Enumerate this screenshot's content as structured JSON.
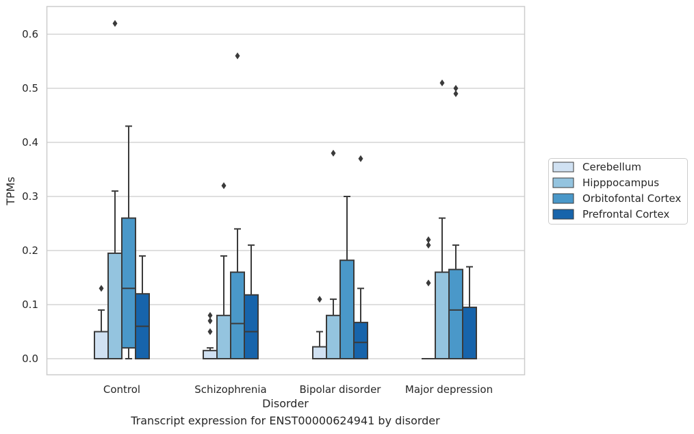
{
  "caption": "Transcript expression for ENST00000624941 by disorder",
  "chart_data": {
    "type": "box",
    "xlabel": "Disorder",
    "ylabel": "TPMs",
    "ylim": [
      -0.03,
      0.65
    ],
    "yticks": [
      "0.0",
      "0.1",
      "0.2",
      "0.3",
      "0.4",
      "0.5",
      "0.6"
    ],
    "grid": "horizontal",
    "legend_position": "right",
    "categories": [
      "Control",
      "Schizophrenia",
      "Bipolar disorder",
      "Major depression"
    ],
    "series": [
      {
        "name": "Cerebellum",
        "color": "#d0e1f2",
        "boxes": [
          {
            "lower_whisker": 0,
            "q1": 0,
            "median": 0,
            "q3": 0.05,
            "upper_whisker": 0.09,
            "outliers": [
              0.13
            ]
          },
          {
            "lower_whisker": 0,
            "q1": 0,
            "median": 0,
            "q3": 0.015,
            "upper_whisker": 0.02,
            "outliers": [
              0.05,
              0.07,
              0.08
            ]
          },
          {
            "lower_whisker": 0,
            "q1": 0,
            "median": 0,
            "q3": 0.022,
            "upper_whisker": 0.05,
            "outliers": [
              0.11
            ]
          },
          {
            "lower_whisker": 0,
            "q1": 0,
            "median": 0,
            "q3": 0,
            "upper_whisker": 0,
            "outliers": [
              0.14,
              0.21,
              0.22
            ]
          }
        ]
      },
      {
        "name": "Hipppocampus",
        "color": "#94c4df",
        "boxes": [
          {
            "lower_whisker": 0,
            "q1": 0,
            "median": 0,
            "q3": 0.195,
            "upper_whisker": 0.31,
            "outliers": [
              0.62
            ]
          },
          {
            "lower_whisker": 0,
            "q1": 0,
            "median": 0,
            "q3": 0.08,
            "upper_whisker": 0.19,
            "outliers": [
              0.32
            ]
          },
          {
            "lower_whisker": 0,
            "q1": 0,
            "median": 0,
            "q3": 0.08,
            "upper_whisker": 0.11,
            "outliers": [
              0.38
            ]
          },
          {
            "lower_whisker": 0,
            "q1": 0,
            "median": 0,
            "q3": 0.16,
            "upper_whisker": 0.26,
            "outliers": [
              0.51
            ]
          }
        ]
      },
      {
        "name": "Orbitofontal Cortex",
        "color": "#4a98c9",
        "boxes": [
          {
            "lower_whisker": 0,
            "q1": 0.02,
            "median": 0.13,
            "q3": 0.26,
            "upper_whisker": 0.43,
            "outliers": []
          },
          {
            "lower_whisker": 0,
            "q1": 0,
            "median": 0.065,
            "q3": 0.16,
            "upper_whisker": 0.24,
            "outliers": [
              0.56
            ]
          },
          {
            "lower_whisker": 0,
            "q1": 0,
            "median": 0,
            "q3": 0.182,
            "upper_whisker": 0.3,
            "outliers": []
          },
          {
            "lower_whisker": 0,
            "q1": 0,
            "median": 0.09,
            "q3": 0.165,
            "upper_whisker": 0.21,
            "outliers": [
              0.49,
              0.5
            ]
          }
        ]
      },
      {
        "name": "Prefrontal Cortex",
        "color": "#1764ab",
        "boxes": [
          {
            "lower_whisker": 0,
            "q1": 0,
            "median": 0.06,
            "q3": 0.12,
            "upper_whisker": 0.19,
            "outliers": []
          },
          {
            "lower_whisker": 0,
            "q1": 0,
            "median": 0.05,
            "q3": 0.118,
            "upper_whisker": 0.21,
            "outliers": []
          },
          {
            "lower_whisker": 0,
            "q1": 0,
            "median": 0.03,
            "q3": 0.067,
            "upper_whisker": 0.13,
            "outliers": [
              0.37
            ]
          },
          {
            "lower_whisker": 0,
            "q1": 0,
            "median": 0,
            "q3": 0.095,
            "upper_whisker": 0.17,
            "outliers": []
          }
        ]
      }
    ]
  }
}
